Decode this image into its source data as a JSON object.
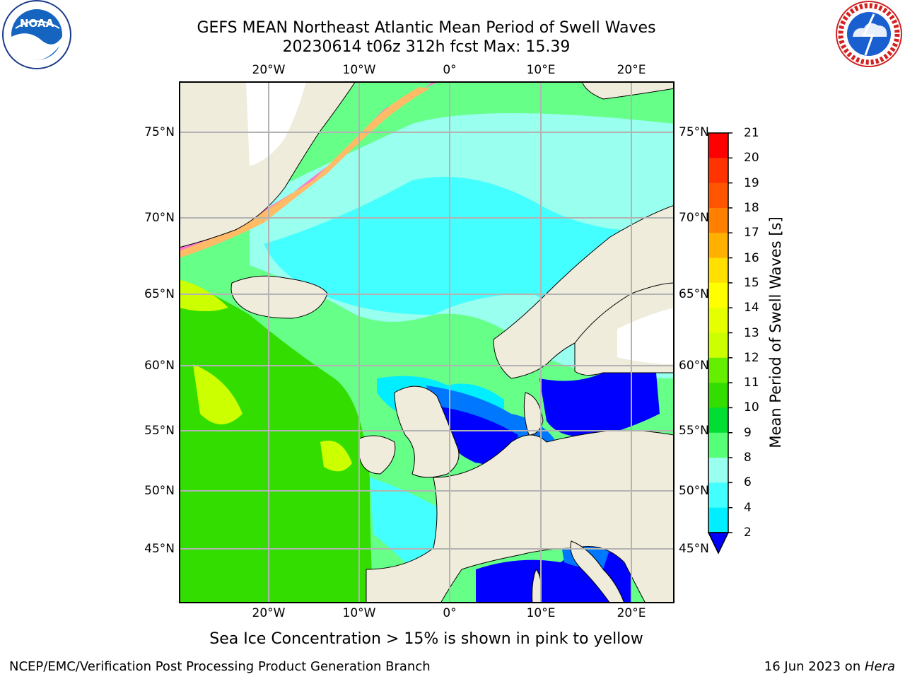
{
  "header": {
    "title_line1": "GEFS MEAN Northeast Atlantic Mean Period of Swell Waves",
    "title_line2": "20230614 t06z 312h fcst   Max: 15.39"
  },
  "logos": {
    "noaa_text": "NOAA",
    "nws_text": "NATIONAL WEATHER SERVICE"
  },
  "map": {
    "lon_labels": [
      "20°W",
      "10°W",
      "0°",
      "10°E",
      "20°E"
    ],
    "lat_labels": [
      "75°N",
      "70°N",
      "65°N",
      "60°N",
      "55°N",
      "50°N",
      "45°N"
    ]
  },
  "colorbar": {
    "label": "Mean Period of Swell Waves [s]",
    "ticks": [
      "21",
      "20",
      "19",
      "18",
      "17",
      "16",
      "15",
      "14",
      "13",
      "12",
      "11",
      "10",
      "9",
      "8",
      "6",
      "4",
      "2"
    ],
    "colors": [
      "#ff0000",
      "#ff3300",
      "#ff5500",
      "#ff7f00",
      "#ffb000",
      "#ffe000",
      "#ffff00",
      "#e6ff00",
      "#ccff00",
      "#66ee00",
      "#33dd00",
      "#00dd33",
      "#55ff77",
      "#99ffee",
      "#44ffff",
      "#00eeff",
      "#0077ff",
      "#0000ff"
    ]
  },
  "notes": {
    "sea_ice": "Sea Ice Concentration > 15% is shown in pink to yellow"
  },
  "footer": {
    "left": "NCEP/EMC/Verification Post Processing Product Generation Branch",
    "date": "16 Jun 2023 on ",
    "machine": "Hera"
  }
}
